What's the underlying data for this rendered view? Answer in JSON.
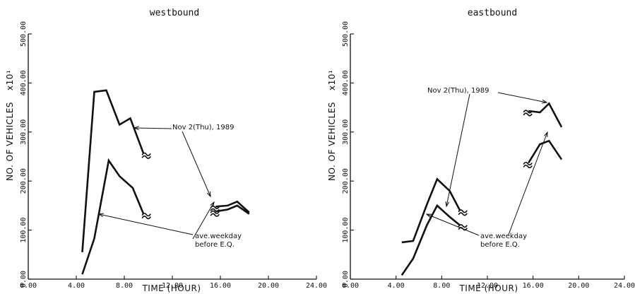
{
  "chart_data": [
    {
      "type": "line",
      "title": "westbound",
      "xlabel": "TIME (HOUR)",
      "ylabel": "NO. OF VEHICLES",
      "ylabel_exp": "x10¹",
      "xlim": [
        0,
        24
      ],
      "ylim": [
        0,
        500
      ],
      "xticks": [
        "0.00",
        "4.00",
        "8.00",
        "12.00",
        "16.00",
        "20.00",
        "24.00"
      ],
      "yticks": [
        "0.00",
        "100.00",
        "200.00",
        "300.00",
        "400.00",
        "500.00"
      ],
      "series": [
        {
          "name": "Nov 2(Thu), 1989",
          "segments": [
            [
              [
                4.5,
                55
              ],
              [
                5.5,
                382
              ],
              [
                6.5,
                385
              ],
              [
                7.6,
                315
              ],
              [
                8.5,
                328
              ],
              [
                9.6,
                256
              ]
            ],
            [
              [
                15.6,
                148
              ],
              [
                16.6,
                150
              ],
              [
                17.4,
                158
              ],
              [
                18.4,
                136
              ]
            ]
          ]
        },
        {
          "name": "ave.weekday before E.Q.",
          "segments": [
            [
              [
                4.5,
                10
              ],
              [
                5.5,
                83
              ],
              [
                6.7,
                242
              ],
              [
                7.6,
                210
              ],
              [
                8.7,
                186
              ],
              [
                9.6,
                133
              ]
            ],
            [
              [
                15.6,
                138
              ],
              [
                16.6,
                142
              ],
              [
                17.4,
                150
              ],
              [
                18.4,
                133
              ]
            ]
          ]
        }
      ],
      "annotations": [
        {
          "text": "Nov 2(Thu), 1989",
          "lines": [
            "Nov 2(Thu), 1989"
          ]
        },
        {
          "text": "ave.weekday before E.Q.",
          "lines": [
            "ave.weekday",
            "before E.Q."
          ]
        }
      ]
    },
    {
      "type": "line",
      "title": "eastbound",
      "xlabel": "TIME (HOUR)",
      "ylabel": "NO. OF VEHICLES",
      "ylabel_exp": "x10¹",
      "xlim": [
        0,
        24
      ],
      "ylim": [
        0,
        500
      ],
      "xticks": [
        "0.00",
        "4.00",
        "8.00",
        "12.00",
        "16.00",
        "20.00",
        "24.00"
      ],
      "yticks": [
        "0.00",
        "100.00",
        "200.00",
        "300.00",
        "400.00",
        "500.00"
      ],
      "series": [
        {
          "name": "Nov 2(Thu), 1989",
          "segments": [
            [
              [
                4.5,
                75
              ],
              [
                5.5,
                78
              ],
              [
                6.7,
                152
              ],
              [
                7.6,
                204
              ],
              [
                8.7,
                180
              ],
              [
                9.6,
                140
              ]
            ],
            [
              [
                15.6,
                343
              ],
              [
                16.6,
                340
              ],
              [
                17.4,
                358
              ],
              [
                18.5,
                310
              ]
            ]
          ]
        },
        {
          "name": "ave.weekday before E.Q.",
          "segments": [
            [
              [
                4.5,
                8
              ],
              [
                5.5,
                42
              ],
              [
                6.7,
                110
              ],
              [
                7.6,
                150
              ],
              [
                8.7,
                127
              ],
              [
                9.6,
                110
              ]
            ],
            [
              [
                15.6,
                237
              ],
              [
                16.6,
                275
              ],
              [
                17.4,
                282
              ],
              [
                18.5,
                244
              ]
            ]
          ]
        }
      ],
      "annotations": [
        {
          "text": "Nov 2(Thu), 1989",
          "lines": [
            "Nov 2(Thu), 1989"
          ]
        },
        {
          "text": "ave.weekday before E.Q.",
          "lines": [
            "ave.weekday",
            "before E.Q."
          ]
        }
      ]
    }
  ]
}
